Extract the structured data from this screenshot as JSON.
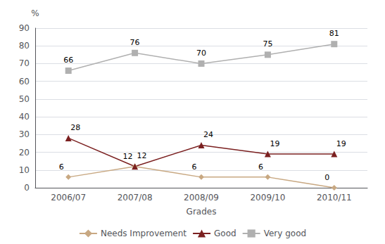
{
  "chart_data": {
    "type": "line",
    "xlabel": "Grades",
    "ylabel": "%",
    "categories": [
      "2006/07",
      "2007/08",
      "2008/09",
      "2009/10",
      "2010/11"
    ],
    "series": [
      {
        "name": "Needs Improvement",
        "color": "#c8a882",
        "marker": "diamond",
        "values": [
          6,
          12,
          6,
          6,
          0
        ]
      },
      {
        "name": "Good",
        "color": "#7b2020",
        "marker": "triangle",
        "values": [
          28,
          12,
          24,
          19,
          19
        ]
      },
      {
        "name": "Very good",
        "color": "#b0b0b0",
        "marker": "square",
        "values": [
          66,
          76,
          70,
          75,
          81
        ]
      }
    ],
    "ylim": [
      0,
      90
    ],
    "yticks": [
      0,
      10,
      20,
      30,
      40,
      50,
      60,
      70,
      80,
      90
    ],
    "grid": true,
    "legend": "bottom",
    "data_labels": true
  }
}
